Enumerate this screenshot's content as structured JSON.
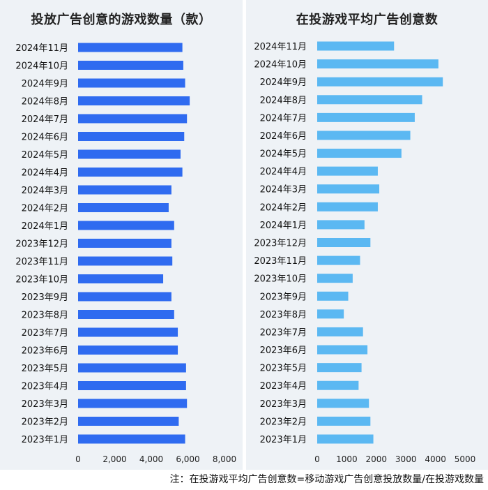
{
  "footnote": "注：在投游戏平均广告创意数=移动游戏广告创意投放数量/在投游戏数量",
  "colors": {
    "left_bar": "#2f6bf0",
    "right_bar": "#5bb8f2",
    "panel_bg": "#eef2f6"
  },
  "chart_data": [
    {
      "type": "bar",
      "orientation": "horizontal",
      "title": "投放广告创意的游戏数量（款）",
      "categories": [
        "2024年11月",
        "2024年10月",
        "2024年9月",
        "2024年8月",
        "2024年7月",
        "2024年6月",
        "2024年5月",
        "2024年4月",
        "2024年3月",
        "2024年2月",
        "2024年1月",
        "2023年12月",
        "2023年11月",
        "2023年10月",
        "2023年9月",
        "2023年8月",
        "2023年7月",
        "2023年6月",
        "2023年5月",
        "2023年4月",
        "2023年3月",
        "2023年2月",
        "2023年1月"
      ],
      "values": [
        5700,
        5750,
        5850,
        6100,
        5950,
        5800,
        5600,
        5700,
        5100,
        4950,
        5250,
        5100,
        5150,
        4650,
        5100,
        5250,
        5450,
        5450,
        5900,
        5900,
        5950,
        5500,
        5850
      ],
      "xticks": [
        0,
        2000,
        4000,
        6000,
        8000
      ],
      "xtick_labels": [
        "0",
        "2,000",
        "4,000",
        "6,000",
        "8,000"
      ],
      "xlim": [
        0,
        8000
      ],
      "grid": false
    },
    {
      "type": "bar",
      "orientation": "horizontal",
      "title": "在投游戏平均广告创意数",
      "categories": [
        "2024年11月",
        "2024年10月",
        "2024年9月",
        "2024年8月",
        "2024年7月",
        "2024年6月",
        "2024年5月",
        "2024年4月",
        "2024年3月",
        "2024年2月",
        "2024年1月",
        "2023年12月",
        "2023年11月",
        "2023年10月",
        "2023年9月",
        "2023年8月",
        "2023年7月",
        "2023年6月",
        "2023年5月",
        "2023年4月",
        "2023年3月",
        "2023年2月",
        "2023年1月"
      ],
      "values": [
        2600,
        4100,
        4250,
        3550,
        3300,
        3150,
        2850,
        2050,
        2100,
        2050,
        1600,
        1800,
        1450,
        1200,
        1050,
        900,
        1550,
        1700,
        1500,
        1400,
        1750,
        1800,
        1900
      ],
      "xticks": [
        0,
        1000,
        2000,
        3000,
        4000,
        5000
      ],
      "xtick_labels": [
        "0",
        "1000",
        "2000",
        "3000",
        "4000",
        "5000"
      ],
      "xlim": [
        0,
        5000
      ],
      "grid": false
    }
  ]
}
